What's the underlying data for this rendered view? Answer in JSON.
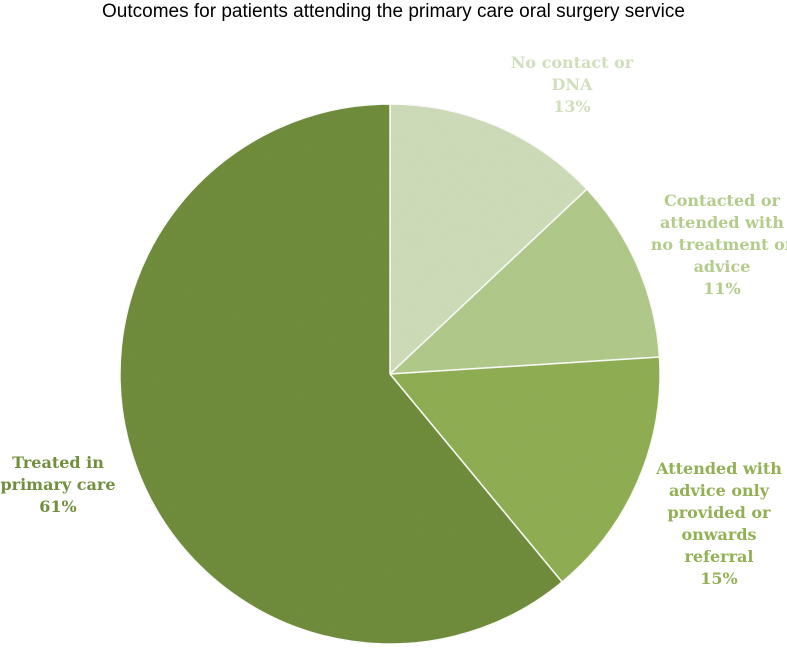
{
  "chart_data": {
    "type": "pie",
    "title": "Outcomes for patients attending the primary care oral surgery service",
    "slices": [
      {
        "label_lines": [
          "No contact or",
          "DNA"
        ],
        "label": "No contact or DNA",
        "value": 13,
        "display": "13%",
        "color": "#d0dfbb"
      },
      {
        "label_lines": [
          "Contacted or",
          "attended with",
          "no treatment or",
          "advice"
        ],
        "label": "Contacted or attended with no treatment or advice",
        "value": 11,
        "display": "11%",
        "color": "#b3cc8c"
      },
      {
        "label_lines": [
          "Attended with",
          "advice only",
          "provided or",
          "onwards",
          "referral"
        ],
        "label": "Attended with advice only provided or onwards referral",
        "value": 15,
        "display": "15%",
        "color": "#92b054"
      },
      {
        "label_lines": [
          "Treated in",
          "primary care"
        ],
        "label": "Treated in primary care",
        "value": 61,
        "display": "61%",
        "color": "#728f3e"
      }
    ],
    "start_angle_deg": 0,
    "direction": "clockwise",
    "legend": "none"
  }
}
